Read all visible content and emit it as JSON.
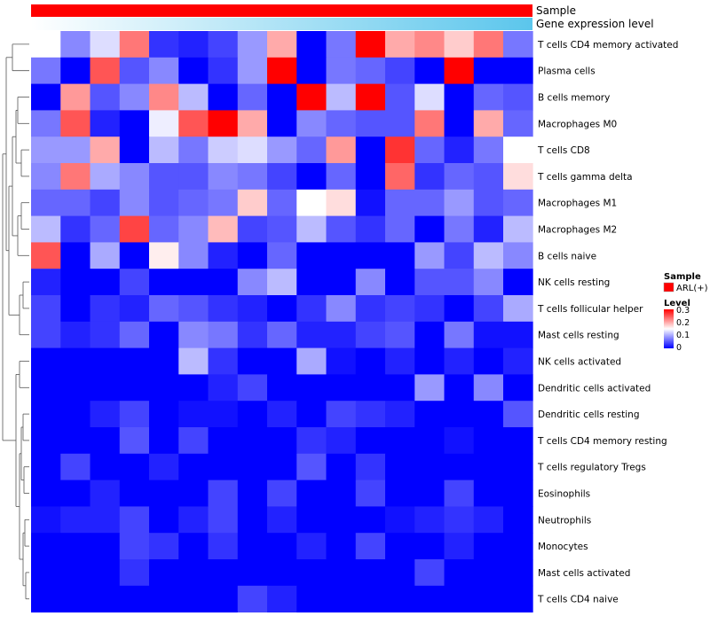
{
  "chart_data": {
    "type": "heatmap",
    "annotations": {
      "sample_label": "Sample",
      "gene_label": "Gene expression level",
      "sample_color": "#ff0000",
      "gene_gradient": [
        "#ffffff",
        "#5bc6ec"
      ]
    },
    "rows": [
      "T cells CD4 memory activated",
      "Plasma cells",
      "B cells memory",
      "Macrophages M0",
      "T cells CD8",
      "T cells gamma delta",
      "Macrophages M1",
      "Macrophages M2",
      "B cells naive",
      "NK cells resting",
      "T cells follicular helper",
      "Mast cells resting",
      "NK cells activated",
      "Dendritic cells activated",
      "Dendritic cells resting",
      "T cells CD4 memory resting",
      "T cells regulatory  Tregs",
      "Eosinophils",
      "Neutrophils",
      "Monocytes",
      "Mast cells activated",
      "T cells CD4 naive"
    ],
    "values": [
      [
        0.15,
        0.08,
        0.13,
        0.23,
        0.03,
        0.02,
        0.04,
        0.09,
        0.2,
        0,
        0.07,
        0.3,
        0.2,
        0.22,
        0.18,
        0.23,
        0.07
      ],
      [
        0.07,
        0,
        0.25,
        0.05,
        0.08,
        0,
        0.03,
        0.09,
        0.3,
        0,
        0.07,
        0.06,
        0.04,
        0,
        0.3,
        0,
        0
      ],
      [
        0,
        0.21,
        0.05,
        0.08,
        0.22,
        0.11,
        0,
        0.06,
        0,
        0.3,
        0.11,
        0.3,
        0.05,
        0.13,
        0,
        0.06,
        0.05
      ],
      [
        0.07,
        0.25,
        0.02,
        0,
        0.14,
        0.25,
        0.3,
        0.2,
        0,
        0.08,
        0.06,
        0.05,
        0.05,
        0.23,
        0,
        0.2,
        0.06
      ],
      [
        0.09,
        0.09,
        0.2,
        0,
        0.11,
        0.07,
        0.12,
        0.13,
        0.09,
        0.06,
        0.21,
        0,
        0.27,
        0.06,
        0.02,
        0.07,
        0.15
      ],
      [
        0.08,
        0.23,
        0.1,
        0.08,
        0.05,
        0.05,
        0.08,
        0.07,
        0.04,
        0,
        0.06,
        0,
        0.24,
        0.03,
        0.06,
        0.05,
        0.17
      ],
      [
        0.06,
        0.06,
        0.04,
        0.08,
        0.05,
        0.06,
        0.07,
        0.18,
        0.06,
        0.15,
        0.17,
        0.01,
        0.06,
        0.06,
        0.09,
        0.05,
        0.06
      ],
      [
        0.11,
        0.03,
        0.06,
        0.26,
        0.06,
        0.08,
        0.19,
        0.04,
        0.05,
        0.11,
        0.05,
        0.03,
        0.06,
        0,
        0.07,
        0.02,
        0.11
      ],
      [
        0.25,
        0,
        0.1,
        0,
        0.16,
        0.08,
        0.02,
        0,
        0.06,
        0,
        0,
        0,
        0,
        0.09,
        0.04,
        0.11,
        0.08
      ],
      [
        0.02,
        0,
        0,
        0.04,
        0,
        0,
        0,
        0.08,
        0.11,
        0,
        0,
        0.08,
        0,
        0.05,
        0.05,
        0.08,
        0
      ],
      [
        0.04,
        0,
        0.03,
        0.02,
        0.06,
        0.05,
        0.03,
        0.02,
        0,
        0.03,
        0.08,
        0.03,
        0.04,
        0.03,
        0,
        0.04,
        0.1
      ],
      [
        0.04,
        0.02,
        0.03,
        0.06,
        0,
        0.08,
        0.07,
        0.03,
        0.06,
        0.02,
        0.02,
        0.04,
        0.05,
        0,
        0.07,
        0.01,
        0.01
      ],
      [
        0,
        0,
        0,
        0,
        0,
        0.11,
        0.03,
        0,
        0,
        0.1,
        0.01,
        0,
        0.02,
        0,
        0.02,
        0,
        0.02
      ],
      [
        0,
        0,
        0,
        0,
        0,
        0,
        0.02,
        0.04,
        0,
        0,
        0,
        0,
        0,
        0.09,
        0,
        0.08,
        0
      ],
      [
        0,
        0,
        0.02,
        0.04,
        0,
        0.01,
        0.01,
        0,
        0.02,
        0,
        0.04,
        0.03,
        0.02,
        0,
        0,
        0,
        0.05
      ],
      [
        0,
        0,
        0,
        0.05,
        0,
        0.04,
        0,
        0,
        0,
        0.03,
        0.02,
        0,
        0,
        0,
        0.01,
        0,
        0
      ],
      [
        0,
        0.04,
        0,
        0,
        0.02,
        0,
        0,
        0,
        0,
        0.05,
        0,
        0.03,
        0,
        0,
        0,
        0,
        0
      ],
      [
        0,
        0,
        0.02,
        0,
        0,
        0,
        0.04,
        0,
        0.04,
        0,
        0,
        0.04,
        0,
        0,
        0.04,
        0,
        0
      ],
      [
        0.01,
        0.02,
        0.02,
        0.04,
        0,
        0.02,
        0.04,
        0,
        0.02,
        0,
        0,
        0,
        0.01,
        0.02,
        0.03,
        0.02,
        0
      ],
      [
        0,
        0,
        0,
        0.04,
        0.03,
        0,
        0.03,
        0,
        0,
        0.02,
        0,
        0.04,
        0,
        0,
        0.02,
        0,
        0
      ],
      [
        0,
        0,
        0,
        0.03,
        0,
        0,
        0,
        0,
        0,
        0,
        0,
        0,
        0,
        0.04,
        0,
        0,
        0
      ],
      [
        0,
        0,
        0,
        0,
        0,
        0,
        0,
        0.04,
        0.02,
        0,
        0,
        0,
        0,
        0,
        0,
        0,
        0
      ]
    ],
    "color_scale": {
      "min": 0,
      "mid": 0.15,
      "max": 0.3,
      "low_color": "#0000ff",
      "mid_color": "#ffffff",
      "high_color": "#ff0000"
    },
    "legend": {
      "sample_title": "Sample",
      "sample_entry": "ARL(+)",
      "level_title": "Level",
      "ticks": [
        "0.3",
        "0.2",
        "0.1",
        "0"
      ]
    },
    "dendrogram": "row clustering (left)"
  }
}
